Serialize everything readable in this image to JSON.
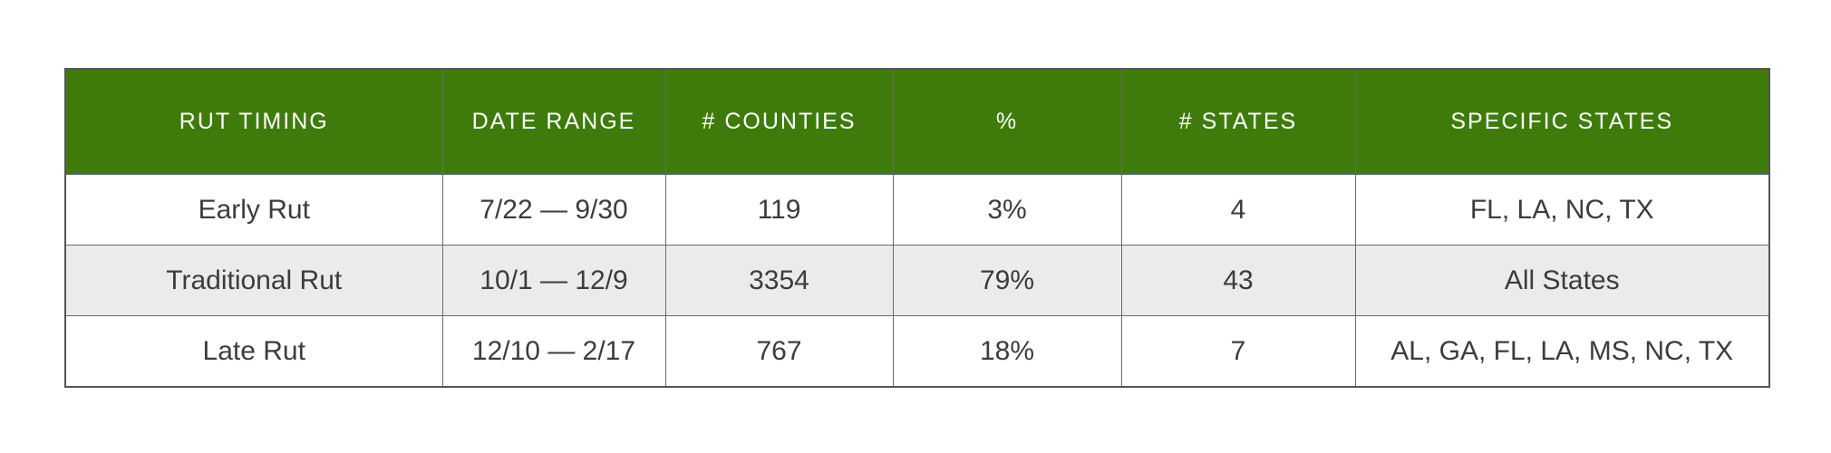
{
  "table": {
    "columns": [
      "RUT TIMING",
      "DATE RANGE",
      "# COUNTIES",
      "%",
      "# STATES",
      "SPECIFIC STATES"
    ],
    "rows": [
      [
        "Early Rut",
        "7/22 — 9/30",
        "119",
        "3%",
        "4",
        "FL, LA, NC, TX"
      ],
      [
        "Traditional Rut",
        "10/1 — 12/9",
        "3354",
        "79%",
        "43",
        "All States"
      ],
      [
        "Late Rut",
        "12/10 — 2/17",
        "767",
        "18%",
        "7",
        "AL, GA, FL, LA, MS, NC, TX"
      ]
    ]
  },
  "colors": {
    "header_background": "#3f7b0b",
    "header_text": "#ffffff",
    "alt_row_background": "#ebebed",
    "border": "#555555"
  }
}
